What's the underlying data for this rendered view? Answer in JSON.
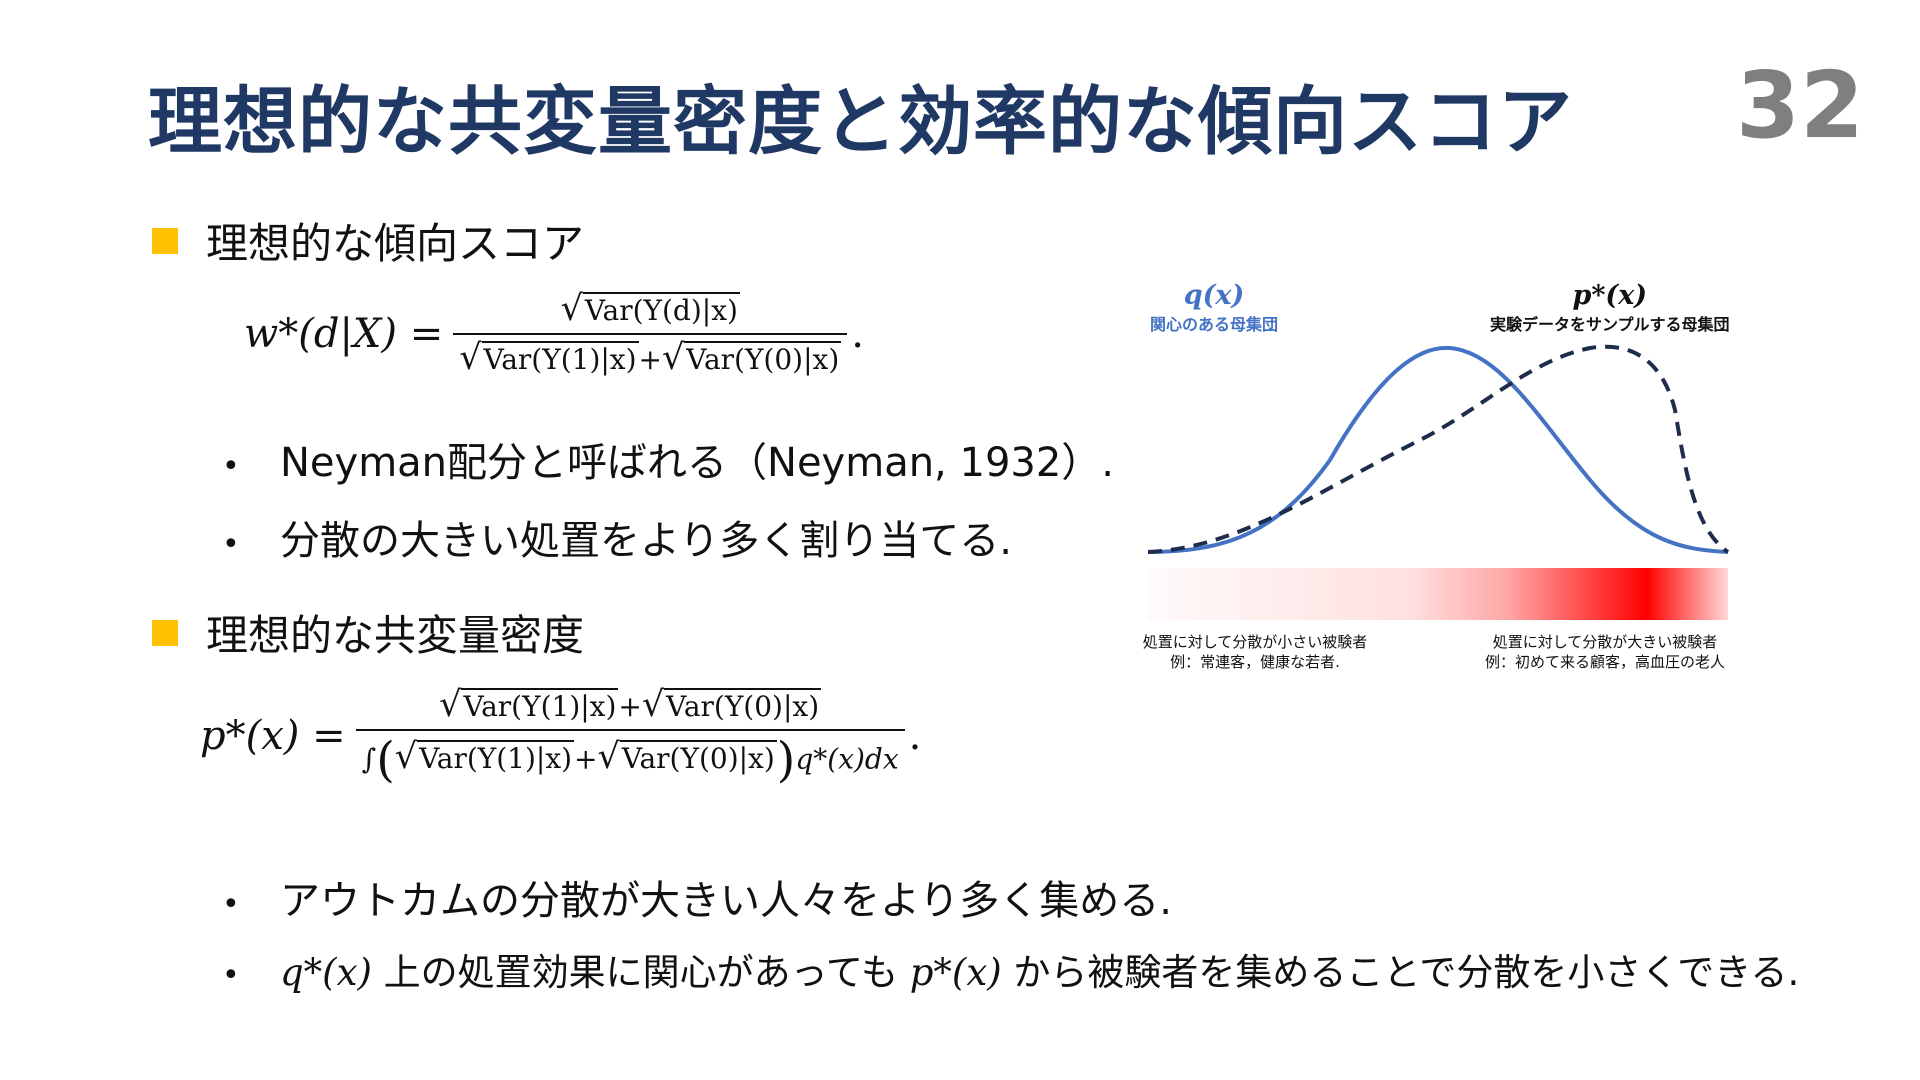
{
  "title": "理想的な共変量密度と効率的な傾向スコア",
  "page_number": "32",
  "colors": {
    "title": "#1f3864",
    "accent": "#ffc000",
    "q_curve": "#4472c4",
    "p_curve": "#1f2d4d",
    "page_number": "#7f7f7f",
    "gradient_red": "#ff0000"
  },
  "section1": {
    "heading": "理想的な傾向スコア",
    "formula": {
      "lhs": "w*(d|X) =",
      "numerator": "Var(Y(d)|x)",
      "denominator_a": "Var(Y(1)|x)",
      "denominator_b": "Var(Y(0)|x)",
      "plus": "+",
      "end": "."
    },
    "bullets": [
      "Neyman配分と呼ばれる（Neyman, 1932）.",
      "分散の大きい処置をより多く割り当てる."
    ]
  },
  "section2": {
    "heading": "理想的な共変量密度",
    "formula": {
      "lhs": "p*(x) =",
      "numerator_a": "Var(Y(1)|x)",
      "numerator_b": "Var(Y(0)|x)",
      "plus": "+",
      "integral": "∫",
      "den_a": "Var(Y(1)|x)",
      "den_b": "Var(Y(0)|x)",
      "den_tail": "q*(x)dx",
      "end": "."
    },
    "bullets": [
      "アウトカムの分散が大きい人々をより多く集める."
    ],
    "last_bullet": {
      "math_q": "q*(x)",
      "text_a": " 上の処置効果に関心があっても ",
      "math_p": "p*(x)",
      "text_b": " から被験者を集めることで分散を小さくできる."
    }
  },
  "figure": {
    "q_label": "q(x)",
    "q_sub": "関心のある母集団",
    "p_label": "p*(x)",
    "p_sub": "実験データをサンプルする母集団",
    "caption_left_1": "処置に対して分散が小さい被験者",
    "caption_left_2": "例：常連客，健康な若者.",
    "caption_right_1": "処置に対して分散が大きい被験者",
    "caption_right_2": "例：初めて来る顧客，高血圧の老人"
  }
}
